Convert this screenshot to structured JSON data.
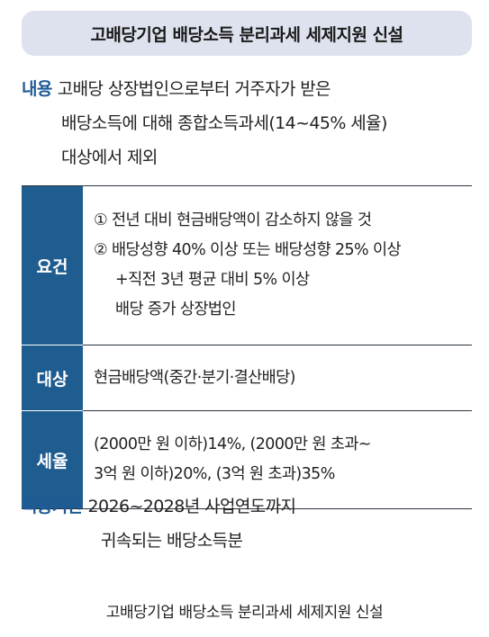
{
  "title": "고배당기업 배당소득 분리과세 세제지원 신설",
  "content": {
    "label": "내용",
    "lines": [
      "고배당 상장법인으로부터 거주자가 받은",
      "배당소득에 대해 종합소득과세(14~45% 세율)",
      "대상에서 제외"
    ]
  },
  "table": {
    "rows": [
      {
        "header": "요건",
        "lines": [
          "① 전년 대비 현금배당액이 감소하지 않을 것",
          "② 배당성향 40% 이상 또는 배당성향 25% 이상",
          "+직전 3년 평균 대비 5% 이상",
          "배당 증가 상장법인"
        ]
      },
      {
        "header": "대상",
        "lines": [
          "현금배당액(중간·분기·결산배당)"
        ]
      },
      {
        "header": "세율",
        "lines": [
          "(2000만 원 이하)14%, (2000만 원 초과~",
          "3억 원 이하)20%, (3억 원 초과)35%"
        ]
      }
    ]
  },
  "period": {
    "label": "적용기간",
    "lines": [
      "2026~2028년 사업연도까지",
      "귀속되는 배당소득분"
    ]
  },
  "caption": "고배당기업 배당소득 분리과세 세제지원 신설",
  "colors": {
    "accent": "#1f5c8f",
    "label_text": "#1e5a96",
    "title_bg": "#dde2ee"
  }
}
